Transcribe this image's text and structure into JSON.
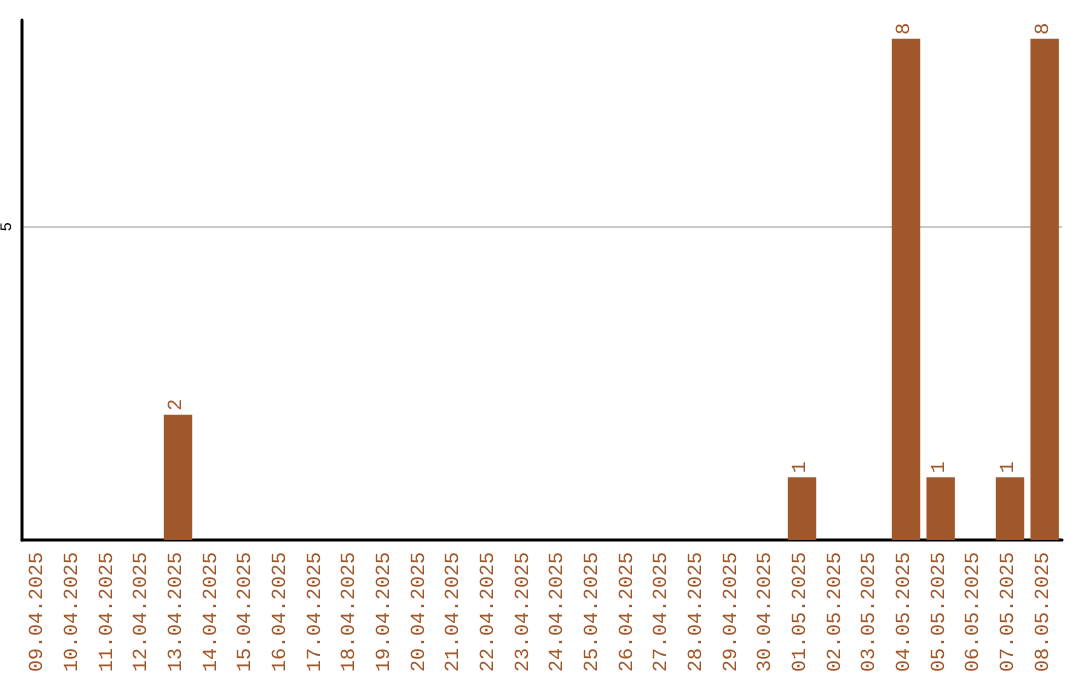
{
  "chart_data": {
    "type": "bar",
    "categories": [
      "09.04.2025",
      "10.04.2025",
      "11.04.2025",
      "12.04.2025",
      "13.04.2025",
      "14.04.2025",
      "15.04.2025",
      "16.04.2025",
      "17.04.2025",
      "18.04.2025",
      "19.04.2025",
      "20.04.2025",
      "21.04.2025",
      "22.04.2025",
      "23.04.2025",
      "24.04.2025",
      "25.04.2025",
      "26.04.2025",
      "27.04.2025",
      "28.04.2025",
      "29.04.2025",
      "30.04.2025",
      "01.05.2025",
      "02.05.2025",
      "03.05.2025",
      "04.05.2025",
      "05.05.2025",
      "06.05.2025",
      "07.05.2025",
      "08.05.2025"
    ],
    "values": [
      0,
      0,
      0,
      0,
      2,
      0,
      0,
      0,
      0,
      0,
      0,
      0,
      0,
      0,
      0,
      0,
      0,
      0,
      0,
      0,
      0,
      0,
      1,
      0,
      0,
      8,
      1,
      0,
      1,
      8
    ],
    "value_labels": [
      null,
      null,
      null,
      null,
      "2",
      null,
      null,
      null,
      null,
      null,
      null,
      null,
      null,
      null,
      null,
      null,
      null,
      null,
      null,
      null,
      null,
      null,
      "1",
      null,
      null,
      "8",
      "1",
      null,
      "1",
      "8"
    ],
    "color": "#a0582a",
    "ylim": [
      0,
      8.3
    ],
    "yticks": [
      5
    ],
    "grid": "y"
  }
}
